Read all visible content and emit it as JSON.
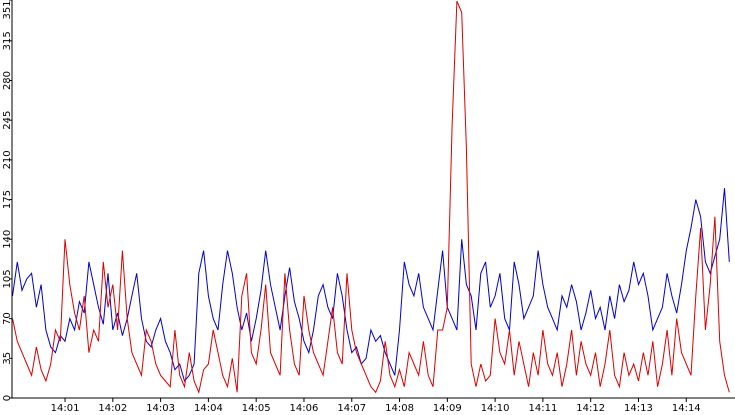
{
  "chart_data": {
    "type": "line",
    "xlim": [
      -0.11,
      15.02
    ],
    "xticks": [
      {
        "value": 1,
        "label": "14:01"
      },
      {
        "value": 2,
        "label": "14:02"
      },
      {
        "value": 3,
        "label": "14:03"
      },
      {
        "value": 4,
        "label": "14:04"
      },
      {
        "value": 5,
        "label": "14:05"
      },
      {
        "value": 6,
        "label": "14:06"
      },
      {
        "value": 7,
        "label": "14:07"
      },
      {
        "value": 8,
        "label": "14:08"
      },
      {
        "value": 9,
        "label": "14:09"
      },
      {
        "value": 10,
        "label": "14:10"
      },
      {
        "value": 11,
        "label": "14:11"
      },
      {
        "value": 12,
        "label": "14:12"
      },
      {
        "value": 13,
        "label": "14:13"
      },
      {
        "value": 14,
        "label": "14:14"
      }
    ],
    "ylim": [
      0,
      351
    ],
    "yticks": [
      0,
      35,
      70,
      105,
      140,
      175,
      210,
      245,
      280,
      315,
      351
    ],
    "x": [
      -0.1,
      0,
      0.1,
      0.2,
      0.3,
      0.4,
      0.5,
      0.6,
      0.7,
      0.8,
      0.9,
      1,
      1.1,
      1.2,
      1.3,
      1.4,
      1.5,
      1.6,
      1.7,
      1.8,
      1.9,
      2,
      2.1,
      2.2,
      2.3,
      2.4,
      2.5,
      2.6,
      2.7,
      2.8,
      2.9,
      3,
      3.1,
      3.2,
      3.3,
      3.4,
      3.5,
      3.6,
      3.7,
      3.8,
      3.9,
      4,
      4.1,
      4.2,
      4.3,
      4.4,
      4.5,
      4.6,
      4.7,
      4.8,
      4.9,
      5,
      5.1,
      5.2,
      5.3,
      5.4,
      5.5,
      5.6,
      5.7,
      5.8,
      5.9,
      6,
      6.1,
      6.2,
      6.3,
      6.4,
      6.5,
      6.6,
      6.7,
      6.8,
      6.9,
      7,
      7.1,
      7.2,
      7.3,
      7.4,
      7.5,
      7.6,
      7.7,
      7.8,
      7.9,
      8,
      8.1,
      8.2,
      8.3,
      8.4,
      8.5,
      8.6,
      8.7,
      8.8,
      8.9,
      9,
      9.1,
      9.2,
      9.3,
      9.4,
      9.5,
      9.6,
      9.7,
      9.8,
      9.9,
      10,
      10.1,
      10.2,
      10.3,
      10.4,
      10.5,
      10.6,
      10.7,
      10.8,
      10.9,
      11,
      11.1,
      11.2,
      11.3,
      11.4,
      11.5,
      11.6,
      11.7,
      11.8,
      11.9,
      12,
      12.1,
      12.2,
      12.3,
      12.4,
      12.5,
      12.6,
      12.7,
      12.8,
      12.9,
      13,
      13.1,
      13.2,
      13.3,
      13.4,
      13.5,
      13.6,
      13.7,
      13.8,
      13.9,
      14,
      14.1,
      14.2,
      14.3,
      14.4,
      14.5,
      14.6,
      14.7,
      14.8,
      14.9
    ],
    "series": [
      {
        "color": "#0000cc",
        "values": [
          90,
          120,
          95,
          105,
          110,
          80,
          100,
          60,
          45,
          40,
          55,
          50,
          70,
          60,
          85,
          75,
          120,
          100,
          80,
          65,
          110,
          60,
          75,
          55,
          70,
          90,
          110,
          70,
          50,
          45,
          60,
          70,
          50,
          40,
          25,
          30,
          15,
          20,
          30,
          110,
          130,
          90,
          70,
          60,
          100,
          130,
          110,
          80,
          60,
          75,
          50,
          70,
          95,
          130,
          100,
          80,
          60,
          90,
          115,
          85,
          70,
          50,
          40,
          60,
          90,
          100,
          80,
          70,
          110,
          90,
          60,
          40,
          45,
          30,
          35,
          60,
          50,
          55,
          40,
          30,
          20,
          60,
          120,
          100,
          90,
          110,
          80,
          70,
          60,
          95,
          130,
          80,
          70,
          60,
          140,
          100,
          90,
          60,
          110,
          120,
          80,
          90,
          110,
          70,
          60,
          120,
          100,
          70,
          80,
          90,
          130,
          100,
          80,
          70,
          60,
          90,
          80,
          100,
          85,
          60,
          75,
          95,
          70,
          80,
          60,
          90,
          70,
          100,
          85,
          95,
          120,
          100,
          110,
          90,
          60,
          70,
          80,
          110,
          90,
          75,
          100,
          130,
          150,
          175,
          160,
          120,
          110,
          125,
          140,
          185,
          120
        ]
      },
      {
        "color": "#dd0000",
        "values": [
          70,
          50,
          40,
          30,
          20,
          45,
          25,
          15,
          30,
          60,
          50,
          140,
          100,
          75,
          60,
          90,
          40,
          60,
          50,
          120,
          80,
          100,
          60,
          130,
          70,
          40,
          30,
          20,
          60,
          50,
          30,
          20,
          15,
          10,
          60,
          20,
          10,
          40,
          15,
          5,
          25,
          30,
          60,
          40,
          20,
          10,
          35,
          5,
          90,
          110,
          40,
          30,
          60,
          100,
          40,
          30,
          20,
          110,
          60,
          30,
          20,
          90,
          60,
          40,
          30,
          20,
          50,
          80,
          40,
          30,
          110,
          60,
          40,
          30,
          20,
          10,
          5,
          15,
          50,
          20,
          10,
          25,
          10,
          40,
          30,
          20,
          50,
          20,
          10,
          60,
          60,
          80,
          240,
          350,
          340,
          220,
          30,
          10,
          30,
          15,
          20,
          70,
          40,
          30,
          60,
          20,
          50,
          30,
          10,
          40,
          20,
          60,
          30,
          20,
          40,
          10,
          30,
          60,
          20,
          50,
          30,
          20,
          40,
          10,
          30,
          60,
          20,
          10,
          40,
          20,
          30,
          15,
          40,
          20,
          50,
          10,
          30,
          60,
          20,
          70,
          40,
          30,
          20,
          90,
          150,
          60,
          100,
          160,
          50,
          20,
          5
        ]
      }
    ]
  }
}
